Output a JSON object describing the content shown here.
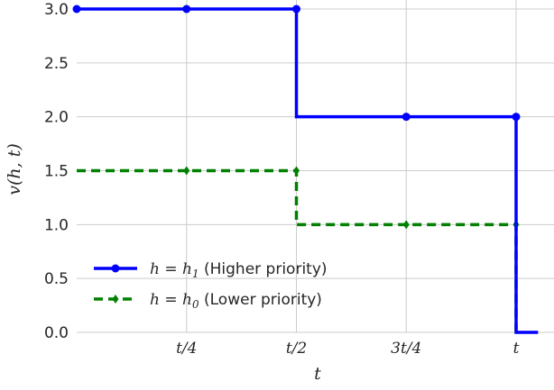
{
  "chart_data": {
    "type": "line",
    "title": "",
    "xlabel": "t",
    "ylabel": "v(h, t)",
    "xlim": [
      0,
      1
    ],
    "ylim": [
      0,
      3
    ],
    "grid": true,
    "legend_position": "lower-left",
    "x_ticks": [
      {
        "value": 0.25,
        "label": "t/4"
      },
      {
        "value": 0.5,
        "label": "t/2"
      },
      {
        "value": 0.75,
        "label": "3t/4"
      },
      {
        "value": 1.0,
        "label": "t"
      }
    ],
    "y_ticks": [
      {
        "value": 0.0,
        "label": "0.0"
      },
      {
        "value": 0.5,
        "label": "0.5"
      },
      {
        "value": 1.0,
        "label": "1.0"
      },
      {
        "value": 1.5,
        "label": "1.5"
      },
      {
        "value": 2.0,
        "label": "2.0"
      },
      {
        "value": 2.5,
        "label": "2.5"
      },
      {
        "value": 3.0,
        "label": "3.0"
      }
    ],
    "series": [
      {
        "name": "h = h1 (Higher priority)",
        "legend_math": "h = h",
        "legend_sub": "1",
        "legend_text": " (Higher priority)",
        "color": "#0000ff",
        "marker": "circle",
        "dashed": false,
        "x": [
          0,
          0.25,
          0.5,
          0.5,
          0.75,
          1.0,
          1.0,
          1.05
        ],
        "y": [
          3,
          3,
          3,
          2,
          2,
          2,
          0,
          0
        ],
        "markers_x": [
          0,
          0.25,
          0.5,
          0.75,
          1.0
        ],
        "markers_y": [
          3,
          3,
          3,
          2,
          2
        ]
      },
      {
        "name": "h = h0 (Lower priority)",
        "legend_math": "h = h",
        "legend_sub": "0",
        "legend_text": " (Lower priority)",
        "color": "#008000",
        "marker": "diamond",
        "dashed": true,
        "x": [
          0,
          0.25,
          0.5,
          0.5,
          0.75,
          1.0,
          1.0
        ],
        "y": [
          1.5,
          1.5,
          1.5,
          1.0,
          1.0,
          1.0,
          0
        ],
        "markers_x": [
          0.25,
          0.5,
          0.75,
          1.0
        ],
        "markers_y": [
          1.5,
          1.5,
          1.0,
          1.0
        ]
      }
    ]
  }
}
